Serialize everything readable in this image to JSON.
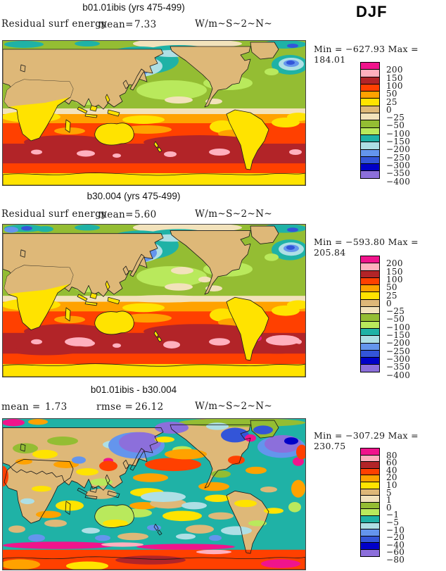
{
  "header": {
    "season_label": "DJF"
  },
  "palette": [
    "#f0148c",
    "#ffb0be",
    "#b22428",
    "#ff4000",
    "#ffa200",
    "#ffe300",
    "#deb878",
    "#f2e2bb",
    "#94bd33",
    "#b9e95c",
    "#1fb2a6",
    "#aedfe5",
    "#6495ed",
    "#3355d8",
    "#0000c8",
    "#8c6fdb"
  ],
  "panels": [
    {
      "title": "b01.01ibis (yrs 475-499)",
      "field": "Residual surf energy",
      "mean_label": "mean=",
      "mean_value": "7.33",
      "units": "W/m~S~2~N~",
      "minmax": "Min = −627.93 Max = 184.01",
      "colorbar_labels": [
        "200",
        "150",
        "100",
        "50",
        "25",
        "0",
        "−25",
        "−50",
        "−100",
        "−150",
        "−200",
        "−250",
        "−300",
        "−350",
        "−400"
      ]
    },
    {
      "title": "b30.004 (yrs 475-499)",
      "field": "Residual surf energy",
      "mean_label": "mean=",
      "mean_value": "5.60",
      "units": "W/m~S~2~N~",
      "minmax": "Min = −593.80 Max = 205.84",
      "colorbar_labels": [
        "200",
        "150",
        "100",
        "50",
        "25",
        "0",
        "−25",
        "−50",
        "−100",
        "−150",
        "−200",
        "−250",
        "−300",
        "−350",
        "−400"
      ]
    },
    {
      "title": "b01.01ibis - b30.004",
      "mean_label": "mean =",
      "mean_value": "1.73",
      "rmse_label": "rmse =",
      "rmse_value": "26.12",
      "units": "W/m~S~2~N~",
      "minmax": "Min = −307.29 Max = 230.75",
      "colorbar_labels": [
        "80",
        "60",
        "40",
        "20",
        "10",
        "5",
        "1",
        "0",
        "−1",
        "−5",
        "−10",
        "−20",
        "−40",
        "−60",
        "−80"
      ]
    }
  ],
  "chart_data": {
    "type": "heatmap",
    "season": "DJF",
    "field": "Residual surf energy",
    "units_code": "W/m~S~2~N~",
    "projection": "global lat-lon map, Pacific-centered",
    "legend_position": "right",
    "panels": [
      {
        "title": "b01.01ibis (yrs 475-499)",
        "mean": 7.33,
        "min": -627.93,
        "max": 184.01,
        "contour_levels": [
          200,
          150,
          100,
          50,
          25,
          0,
          -25,
          -50,
          -100,
          -150,
          -200,
          -250,
          -300,
          -350,
          -400
        ]
      },
      {
        "title": "b30.004 (yrs 475-499)",
        "mean": 5.6,
        "min": -593.8,
        "max": 205.84,
        "contour_levels": [
          200,
          150,
          100,
          50,
          25,
          0,
          -25,
          -50,
          -100,
          -150,
          -200,
          -250,
          -300,
          -350,
          -400
        ]
      },
      {
        "title": "b01.01ibis - b30.004",
        "mean": 1.73,
        "rmse": 26.12,
        "min": -307.29,
        "max": 230.75,
        "contour_levels": [
          80,
          60,
          40,
          20,
          10,
          5,
          1,
          0,
          -1,
          -5,
          -10,
          -20,
          -40,
          -60,
          -80
        ]
      }
    ]
  }
}
